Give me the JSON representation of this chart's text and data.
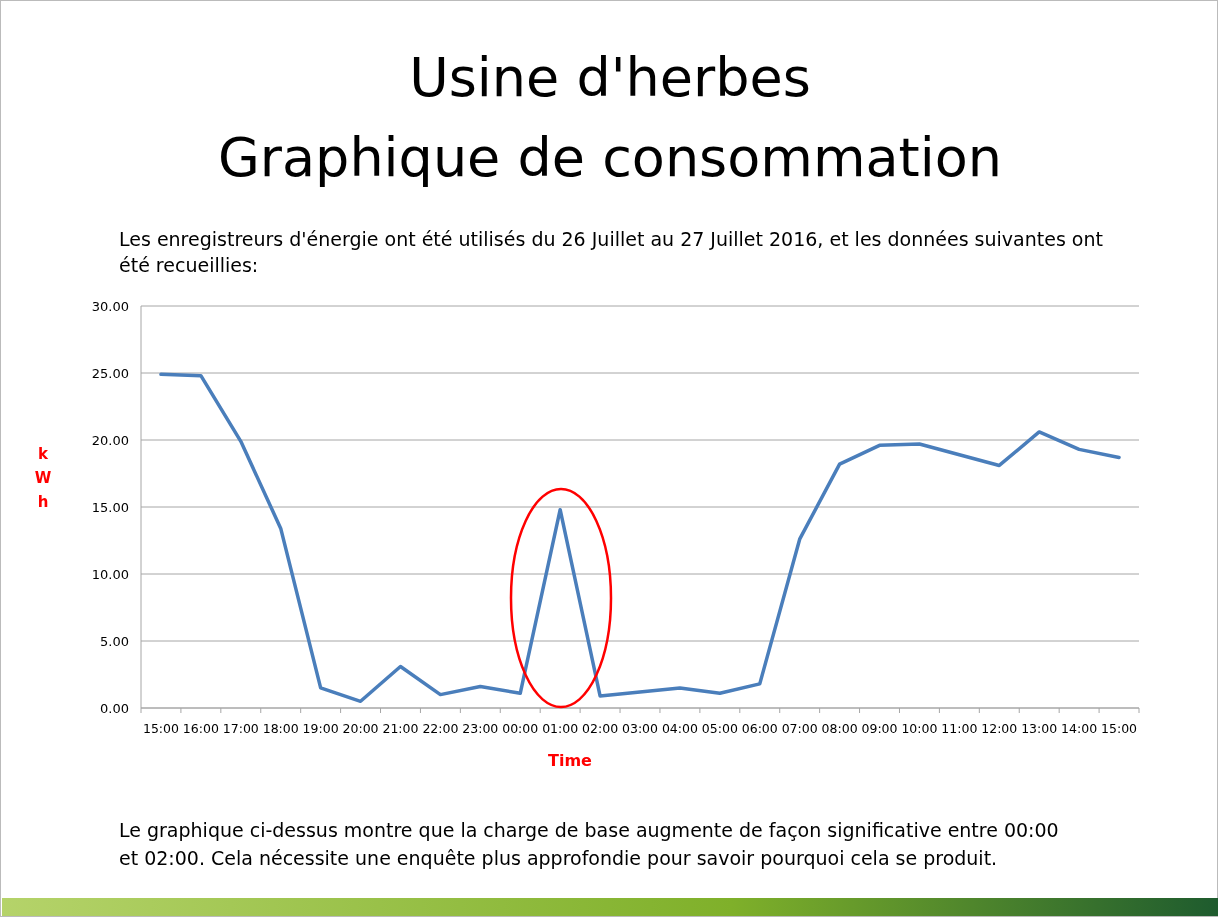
{
  "chart_data": {
    "type": "line",
    "title": "Usine d'herbes\nGraphique de consommation",
    "subtitle": "Les enregistreurs d'énergie ont été utilisés du 26 Juillet au 27 Juillet 2016, et les données suivantes ont été recueillies:",
    "xlabel": "Time",
    "ylabel": "kWh",
    "annotations": [
      "Le graphique ci-dessus montre que la charge de base augmente de façon significative entre 00:00 et 02:00. Cela nécessite une enquête plus approfondie pour savoir pourquoi cela se produit."
    ],
    "categories": [
      "15:00",
      "16:00",
      "17:00",
      "18:00",
      "19:00",
      "20:00",
      "21:00",
      "22:00",
      "23:00",
      "00:00",
      "01:00",
      "02:00",
      "03:00",
      "04:00",
      "05:00",
      "06:00",
      "07:00",
      "08:00",
      "09:00",
      "10:00",
      "11:00",
      "12:00",
      "13:00",
      "14:00",
      "15:00"
    ],
    "series": [
      {
        "color": "#4a7ebb",
        "values": [
          24.9,
          24.8,
          19.9,
          13.4,
          1.5,
          0.5,
          3.1,
          1.0,
          1.6,
          1.1,
          14.8,
          0.9,
          1.2,
          1.5,
          1.1,
          1.8,
          12.6,
          18.2,
          19.6,
          19.7,
          18.9,
          18.1,
          20.6,
          19.3,
          18.7
        ]
      }
    ],
    "ylim": [
      0,
      30
    ],
    "yticks": [
      {
        "value": 0,
        "label": "0.00"
      },
      {
        "value": 5,
        "label": "5.00"
      },
      {
        "value": 10,
        "label": "10.00"
      },
      {
        "value": 15,
        "label": "15.00"
      },
      {
        "value": 20,
        "label": "20.00"
      },
      {
        "value": 25,
        "label": "25.00"
      },
      {
        "value": 30,
        "label": "30.00"
      }
    ],
    "grid": "y",
    "marker": "none",
    "line_style": "solid"
  }
}
